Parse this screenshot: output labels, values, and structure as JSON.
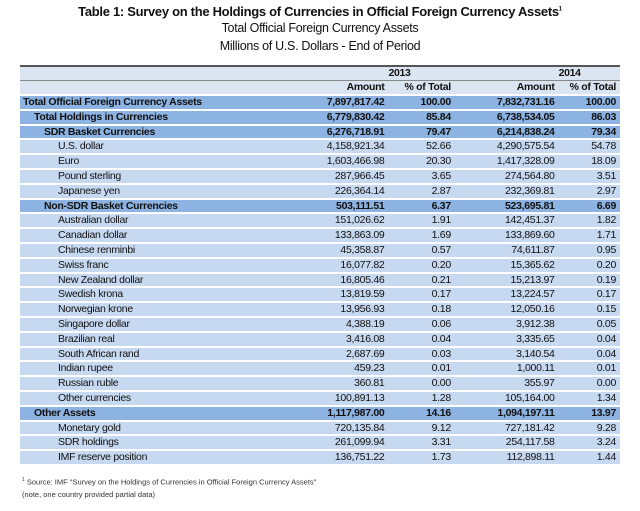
{
  "title": "Table 1: Survey on the Holdings of Currencies in Official Foreign Currency Assets",
  "title_sup": "1",
  "subtitle1": "Total Official Foreign Currency Assets",
  "subtitle2": "Millions of U.S. Dollars - End of Period",
  "years": [
    "2013",
    "2014"
  ],
  "col_headers": [
    "Amount",
    "% of Total",
    "Amount",
    "% of Total"
  ],
  "rows": [
    {
      "label": "Total Official Foreign Currency Assets",
      "level": 0,
      "bold": true,
      "v": [
        "7,897,817.42",
        "100.00",
        "7,832,731.16",
        "100.00"
      ]
    },
    {
      "label": "Total Holdings in Currencies",
      "level": 1,
      "bold": true,
      "v": [
        "6,779,830.42",
        "85.84",
        "6,738,534.05",
        "86.03"
      ]
    },
    {
      "label": "SDR Basket Currencies",
      "level": 2,
      "bold": true,
      "v": [
        "6,276,718.91",
        "79.47",
        "6,214,838.24",
        "79.34"
      ]
    },
    {
      "label": "U.S. dollar",
      "level": 3,
      "bold": false,
      "v": [
        "4,158,921.34",
        "52.66",
        "4,290,575.54",
        "54.78"
      ]
    },
    {
      "label": "Euro",
      "level": 3,
      "bold": false,
      "v": [
        "1,603,466.98",
        "20.30",
        "1,417,328.09",
        "18.09"
      ]
    },
    {
      "label": "Pound sterling",
      "level": 3,
      "bold": false,
      "v": [
        "287,966.45",
        "3.65",
        "274,564.80",
        "3.51"
      ]
    },
    {
      "label": "Japanese yen",
      "level": 3,
      "bold": false,
      "v": [
        "226,364.14",
        "2.87",
        "232,369.81",
        "2.97"
      ]
    },
    {
      "label": "Non-SDR Basket Currencies",
      "level": 2,
      "bold": true,
      "v": [
        "503,111.51",
        "6.37",
        "523,695.81",
        "6.69"
      ]
    },
    {
      "label": "Australian dollar",
      "level": 3,
      "bold": false,
      "v": [
        "151,026.62",
        "1.91",
        "142,451.37",
        "1.82"
      ]
    },
    {
      "label": "Canadian dollar",
      "level": 3,
      "bold": false,
      "v": [
        "133,863.09",
        "1.69",
        "133,869.60",
        "1.71"
      ]
    },
    {
      "label": "Chinese renminbi",
      "level": 3,
      "bold": false,
      "v": [
        "45,358.87",
        "0.57",
        "74,611.87",
        "0.95"
      ]
    },
    {
      "label": "Swiss franc",
      "level": 3,
      "bold": false,
      "v": [
        "16,077.82",
        "0.20",
        "15,365.62",
        "0.20"
      ]
    },
    {
      "label": "New Zealand dollar",
      "level": 3,
      "bold": false,
      "v": [
        "16,805.46",
        "0.21",
        "15,213.97",
        "0.19"
      ]
    },
    {
      "label": "Swedish krona",
      "level": 3,
      "bold": false,
      "v": [
        "13,819.59",
        "0.17",
        "13,224.57",
        "0.17"
      ]
    },
    {
      "label": "Norwegian krone",
      "level": 3,
      "bold": false,
      "v": [
        "13,956.93",
        "0.18",
        "12,050.16",
        "0.15"
      ]
    },
    {
      "label": "Singapore dollar",
      "level": 3,
      "bold": false,
      "v": [
        "4,388.19",
        "0.06",
        "3,912.38",
        "0.05"
      ]
    },
    {
      "label": "Brazilian real",
      "level": 3,
      "bold": false,
      "v": [
        "3,416.08",
        "0.04",
        "3,335.65",
        "0.04"
      ]
    },
    {
      "label": "South African rand",
      "level": 3,
      "bold": false,
      "v": [
        "2,687.69",
        "0.03",
        "3,140.54",
        "0.04"
      ]
    },
    {
      "label": "Indian rupee",
      "level": 3,
      "bold": false,
      "v": [
        "459.23",
        "0.01",
        "1,000.11",
        "0.01"
      ]
    },
    {
      "label": "Russian ruble",
      "level": 3,
      "bold": false,
      "v": [
        "360.81",
        "0.00",
        "355.97",
        "0.00"
      ]
    },
    {
      "label": "Other currencies",
      "level": 3,
      "bold": false,
      "v": [
        "100,891.13",
        "1.28",
        "105,164.00",
        "1.34"
      ]
    },
    {
      "label": "Other Assets",
      "level": 1,
      "bold": true,
      "v": [
        "1,117,987.00",
        "14.16",
        "1,094,197.11",
        "13.97"
      ]
    },
    {
      "label": "Monetary gold",
      "level": 3,
      "bold": false,
      "v": [
        "720,135.84",
        "9.12",
        "727,181.42",
        "9.28"
      ]
    },
    {
      "label": "SDR holdings",
      "level": 3,
      "bold": false,
      "v": [
        "261,099.94",
        "3.31",
        "254,117.58",
        "3.24"
      ]
    },
    {
      "label": "IMF reserve position",
      "level": 3,
      "bold": false,
      "v": [
        "136,751.22",
        "1.73",
        "112,898.11",
        "1.44"
      ]
    }
  ],
  "footnote_sup": "1",
  "footnote1": "Source: IMF \"Survey on the Holdings of Currencies in Official Foreign Currency Assets\"",
  "footnote2": "(note, one country provided partial data)",
  "colors": {
    "header": "#dbe5f1",
    "bold_row": "#8db3e2",
    "row": "#c6d9f1"
  }
}
